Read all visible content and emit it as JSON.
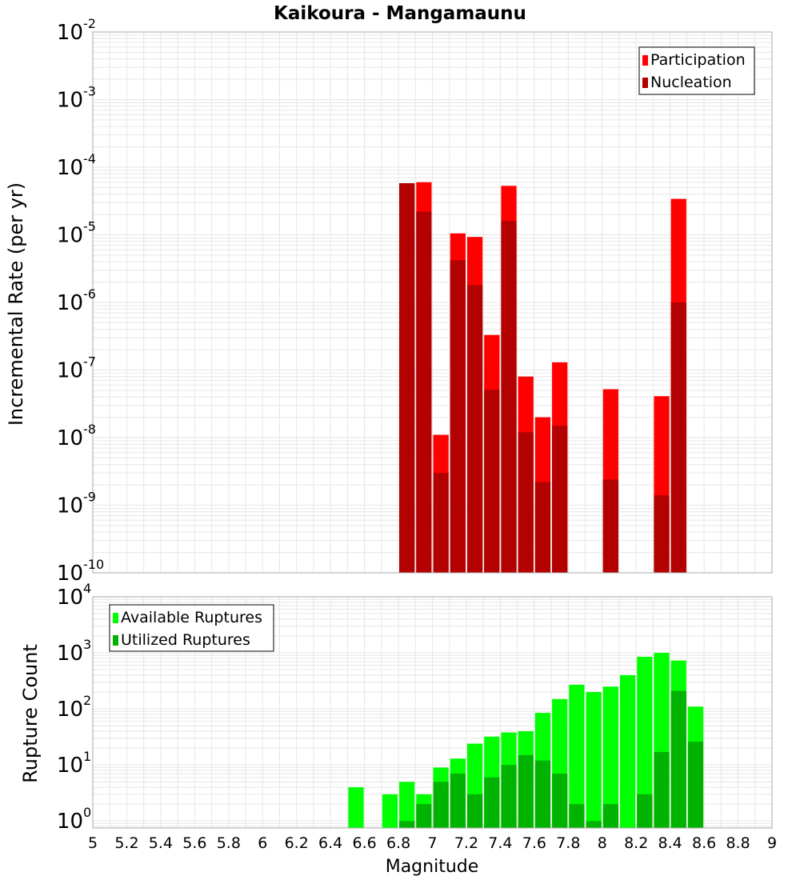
{
  "title": "Kaikoura - Mangamaunu",
  "x_axis_label": "Magnitude",
  "x_ticks": [
    "5",
    "5.2",
    "5.4",
    "5.6",
    "5.8",
    "6",
    "6.2",
    "6.4",
    "6.6",
    "6.8",
    "7",
    "7.2",
    "7.4",
    "7.6",
    "7.8",
    "8",
    "8.2",
    "8.4",
    "8.6",
    "8.8",
    "9"
  ],
  "top_panel": {
    "ylabel": "Incremental Rate (per yr)",
    "y_tick_base": "10",
    "y_tick_exponents": [
      "-10",
      "-9",
      "-8",
      "-7",
      "-6",
      "-5",
      "-4",
      "-3",
      "-2"
    ],
    "legend": [
      "Participation",
      "Nucleation"
    ]
  },
  "bottom_panel": {
    "ylabel": "Rupture Count",
    "y_tick_base": "10",
    "y_tick_exponents": [
      "0",
      "1",
      "2",
      "3",
      "4"
    ],
    "legend": [
      "Available Ruptures",
      "Utilized Ruptures"
    ]
  },
  "colors": {
    "participation": "#ff0000",
    "nucleation": "#b30000",
    "available": "#00ff00",
    "utilized": "#00b300",
    "grid": "#e6e6e6",
    "frame": "#aaaaaa"
  },
  "chart_data": [
    {
      "type": "bar",
      "title": "Kaikoura - Mangamaunu",
      "xlabel": "Magnitude",
      "ylabel": "Incremental Rate (per yr)",
      "y_scale": "log",
      "xlim": [
        5,
        9
      ],
      "ylim": [
        1e-10,
        0.01
      ],
      "grid": true,
      "legend_position": "top-right",
      "series": [
        {
          "name": "Participation",
          "x": [
            6.85,
            6.95,
            7.05,
            7.15,
            7.25,
            7.35,
            7.45,
            7.55,
            7.65,
            7.75,
            8.05,
            8.35,
            8.45
          ],
          "values": [
            5.8e-05,
            6e-05,
            1.1e-08,
            1.05e-05,
            9.3e-06,
            3.3e-07,
            5.3e-05,
            8e-08,
            2e-08,
            1.3e-07,
            5.2e-08,
            4.1e-08,
            3.4e-05
          ]
        },
        {
          "name": "Nucleation",
          "x": [
            6.85,
            6.95,
            7.05,
            7.15,
            7.25,
            7.35,
            7.45,
            7.55,
            7.65,
            7.75,
            8.05,
            8.35,
            8.45
          ],
          "values": [
            5.8e-05,
            2.2e-05,
            3e-09,
            4.2e-06,
            1.8e-06,
            5.1e-08,
            1.6e-05,
            1.2e-08,
            2.2e-09,
            1.5e-08,
            2.4e-09,
            1.4e-09,
            1e-06
          ]
        }
      ]
    },
    {
      "type": "bar",
      "xlabel": "Magnitude",
      "ylabel": "Rupture Count",
      "y_scale": "log",
      "xlim": [
        5,
        9
      ],
      "ylim": [
        0.75,
        10000
      ],
      "grid": true,
      "legend_position": "top-left",
      "series": [
        {
          "name": "Available Ruptures",
          "x": [
            6.55,
            6.75,
            6.85,
            6.95,
            7.05,
            7.15,
            7.25,
            7.35,
            7.45,
            7.55,
            7.65,
            7.75,
            7.85,
            7.95,
            8.05,
            8.15,
            8.25,
            8.35,
            8.45,
            8.55
          ],
          "values": [
            4,
            3,
            5,
            3,
            9,
            13,
            24,
            32,
            38,
            40,
            85,
            150,
            270,
            200,
            250,
            400,
            850,
            1000,
            730,
            110
          ]
        },
        {
          "name": "Utilized Ruptures",
          "x": [
            6.85,
            6.95,
            7.05,
            7.15,
            7.25,
            7.35,
            7.45,
            7.55,
            7.65,
            7.75,
            7.85,
            7.95,
            8.05,
            8.25,
            8.35,
            8.45,
            8.55
          ],
          "values": [
            1,
            2,
            5,
            7,
            3,
            6,
            10,
            15,
            12,
            7,
            2,
            1,
            2,
            3,
            17,
            210,
            26
          ]
        }
      ]
    }
  ]
}
